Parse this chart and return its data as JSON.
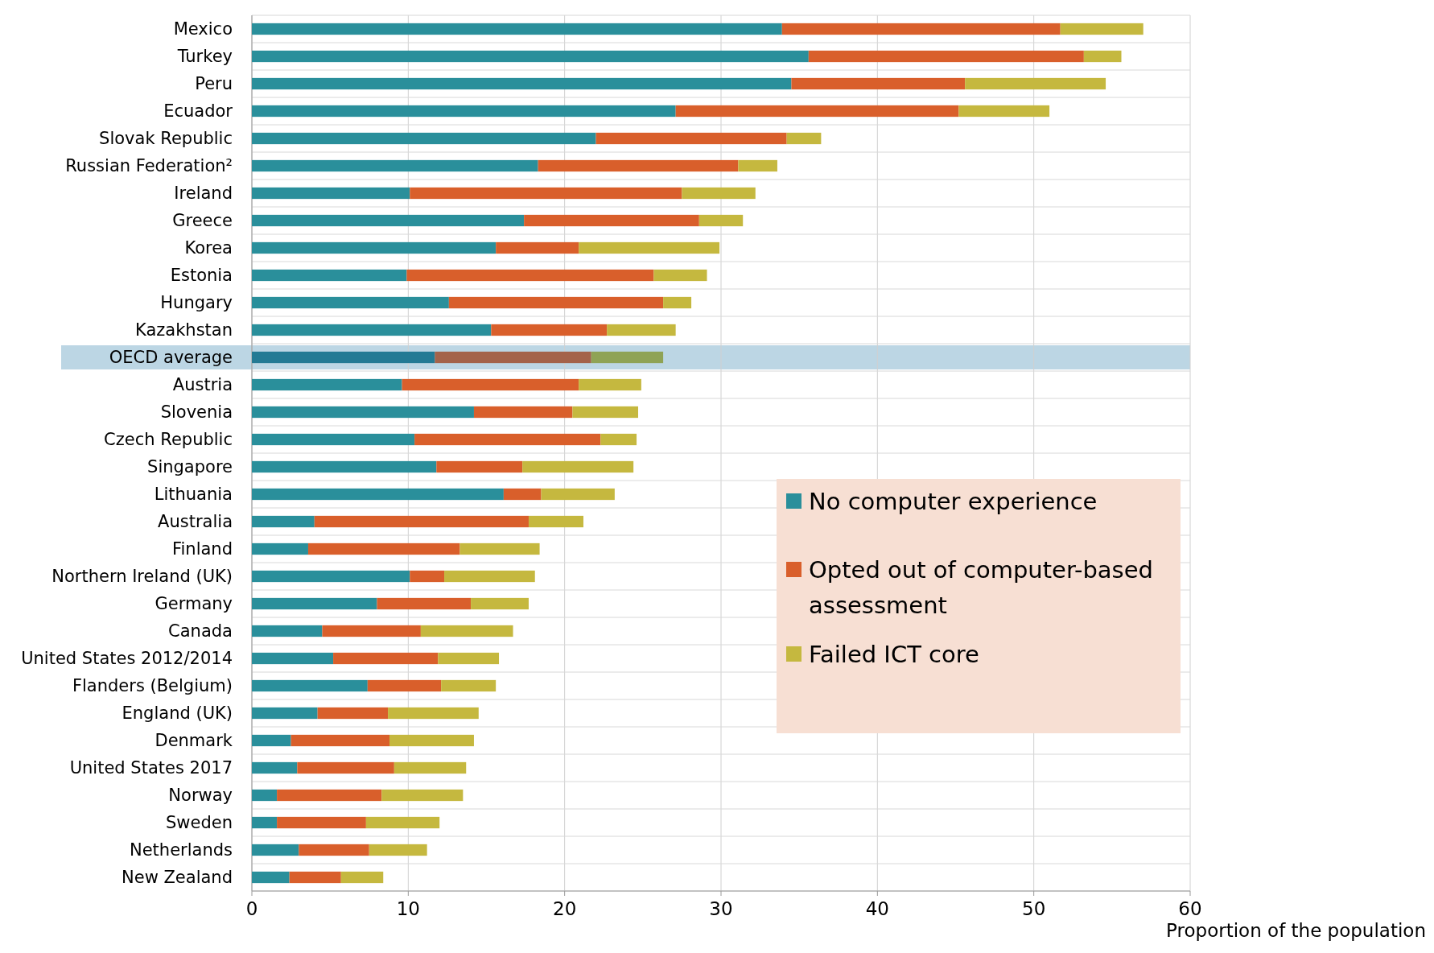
{
  "chart_data": {
    "type": "bar",
    "orientation": "horizontal",
    "stacked": true,
    "xlabel": "Proportion of the population",
    "categories": [
      "Mexico",
      "Turkey",
      "Peru",
      "Ecuador",
      "Slovak Republic",
      "Russian Federation²",
      "Ireland",
      "Greece",
      "Korea",
      "Estonia",
      "Hungary",
      "Kazakhstan",
      "OECD average",
      "Austria",
      "Slovenia",
      "Czech Republic",
      "Singapore",
      "Lithuania",
      "Australia",
      "Finland",
      "Northern Ireland (UK)",
      "Germany",
      "Canada",
      "United States 2012/2014",
      "Flanders (Belgium)",
      "England (UK)",
      "Denmark",
      "United States 2017",
      "Norway",
      "Sweden",
      "Netherlands",
      "New Zealand"
    ],
    "series": [
      {
        "name": "No computer experience",
        "color": "#2a8f9b",
        "colors": [
          "#2a8f9b",
          "#2a8f9b",
          "#2a8f9b",
          "#2a8f9b",
          "#2a8f9b",
          "#2a8f9b",
          "#2a8f9b",
          "#2a8f9b",
          "#2a8f9b",
          "#2a8f9b",
          "#2a8f9b",
          "#2a8f9b",
          "#237a94",
          "#2a8f9b",
          "#2a8f9b",
          "#2a8f9b",
          "#2a8f9b",
          "#2a8f9b",
          "#2a8f9b",
          "#2a8f9b",
          "#2a8f9b",
          "#2a8f9b",
          "#2a8f9b",
          "#2a8f9b",
          "#2a8f9b",
          "#2a8f9b",
          "#2a8f9b",
          "#2a8f9b",
          "#2a8f9b",
          "#2a8f9b",
          "#2a8f9b",
          "#2a8f9b"
        ],
        "values": [
          33.9,
          35.6,
          34.5,
          27.1,
          22.0,
          18.3,
          10.1,
          17.4,
          15.6,
          9.9,
          12.6,
          15.3,
          11.7,
          9.6,
          14.2,
          10.4,
          11.8,
          16.1,
          4.0,
          3.6,
          10.1,
          8.0,
          4.5,
          5.2,
          7.4,
          4.2,
          2.5,
          2.9,
          1.6,
          1.6,
          3.0,
          2.4
        ]
      },
      {
        "name": "Opted out of computer-based assessment",
        "color": "#d95f2b",
        "colors": [
          "#d95f2b",
          "#d95f2b",
          "#d95f2b",
          "#d95f2b",
          "#d95f2b",
          "#d95f2b",
          "#d95f2b",
          "#d95f2b",
          "#d95f2b",
          "#d95f2b",
          "#d95f2b",
          "#d95f2b",
          "#a4634a",
          "#d95f2b",
          "#d95f2b",
          "#d95f2b",
          "#d95f2b",
          "#d95f2b",
          "#d95f2b",
          "#d95f2b",
          "#d95f2b",
          "#d95f2b",
          "#d95f2b",
          "#d95f2b",
          "#d95f2b",
          "#d95f2b",
          "#d95f2b",
          "#d95f2b",
          "#d95f2b",
          "#d95f2b",
          "#d95f2b",
          "#d95f2b"
        ],
        "values": [
          17.8,
          17.6,
          11.1,
          18.1,
          12.2,
          12.8,
          17.4,
          11.2,
          5.3,
          15.8,
          13.7,
          7.4,
          10.0,
          11.3,
          6.3,
          11.9,
          5.5,
          2.4,
          13.7,
          9.7,
          2.2,
          6.0,
          6.3,
          6.7,
          4.7,
          4.5,
          6.3,
          6.2,
          6.7,
          5.7,
          4.5,
          3.3
        ]
      },
      {
        "name": "Failed ICT core",
        "color": "#c5b83f",
        "colors": [
          "#c5b83f",
          "#c5b83f",
          "#c5b83f",
          "#c5b83f",
          "#c5b83f",
          "#c5b83f",
          "#c5b83f",
          "#c5b83f",
          "#c5b83f",
          "#c5b83f",
          "#c5b83f",
          "#c5b83f",
          "#8fa355",
          "#c5b83f",
          "#c5b83f",
          "#c5b83f",
          "#c5b83f",
          "#c5b83f",
          "#c5b83f",
          "#c5b83f",
          "#c5b83f",
          "#c5b83f",
          "#c5b83f",
          "#c5b83f",
          "#c5b83f",
          "#c5b83f",
          "#c5b83f",
          "#c5b83f",
          "#c5b83f",
          "#c5b83f",
          "#c5b83f",
          "#c5b83f"
        ],
        "values": [
          5.3,
          2.4,
          9.0,
          5.8,
          2.2,
          2.5,
          4.7,
          2.8,
          9.0,
          3.4,
          1.8,
          4.4,
          4.6,
          4.0,
          4.2,
          2.3,
          7.1,
          4.7,
          3.5,
          5.1,
          5.8,
          3.7,
          5.9,
          3.9,
          3.5,
          5.8,
          5.4,
          4.6,
          5.2,
          4.7,
          3.7,
          2.7
        ]
      }
    ],
    "xlim": [
      0,
      60
    ],
    "xticks": [
      0,
      10,
      20,
      30,
      40,
      50,
      60
    ],
    "grid": true,
    "legend": "bottom right",
    "bands": [
      {
        "axis": "y",
        "from": "OECD average",
        "to": "OECD average",
        "color": "#bcd6e4"
      }
    ]
  }
}
